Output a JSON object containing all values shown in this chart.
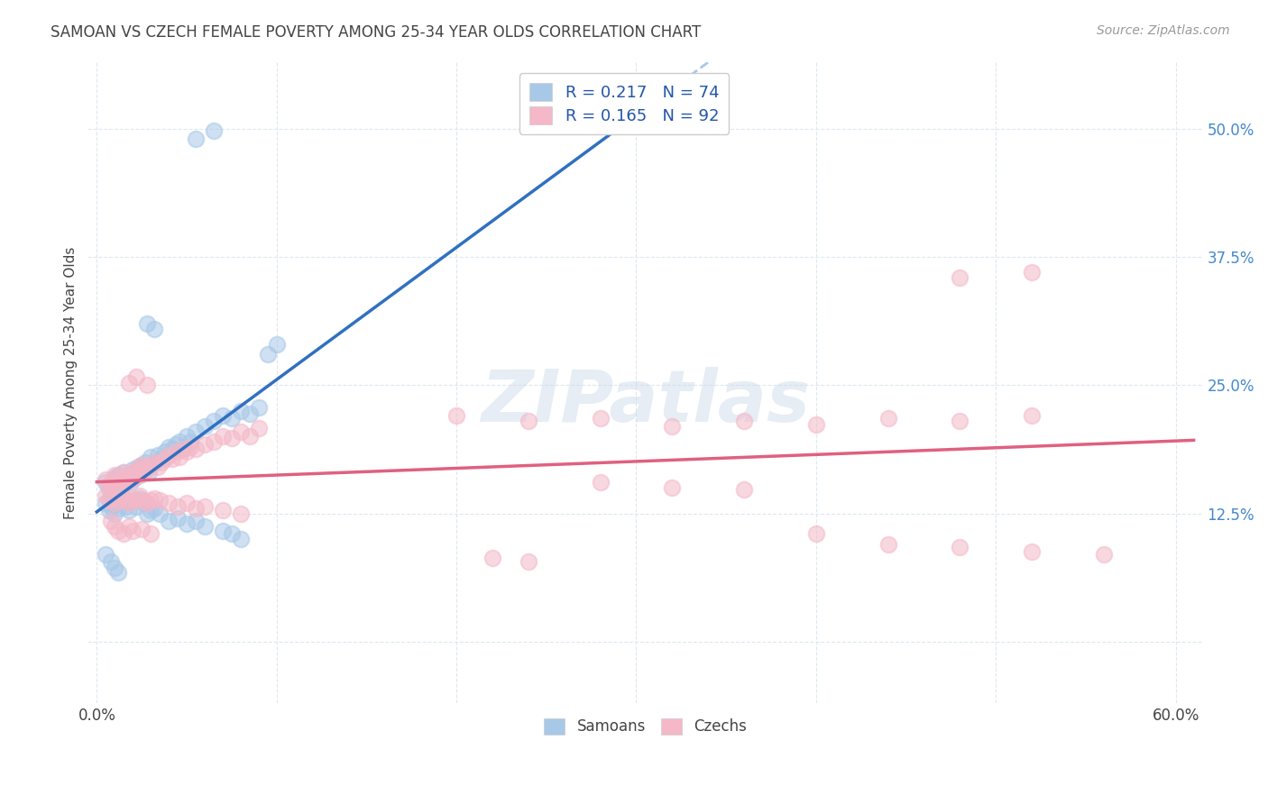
{
  "title": "SAMOAN VS CZECH FEMALE POVERTY AMONG 25-34 YEAR OLDS CORRELATION CHART",
  "source": "Source: ZipAtlas.com",
  "ylabel": "Female Poverty Among 25-34 Year Olds",
  "xlabel_ticks": [
    0.0,
    0.1,
    0.2,
    0.3,
    0.4,
    0.5,
    0.6
  ],
  "xlabel_labels": [
    "0.0%",
    "",
    "",
    "",
    "",
    "",
    "60.0%"
  ],
  "ytick_positions": [
    0.0,
    0.125,
    0.25,
    0.375,
    0.5
  ],
  "ytick_labels": [
    "",
    "12.5%",
    "25.0%",
    "37.5%",
    "50.0%"
  ],
  "xlim": [
    -0.005,
    0.615
  ],
  "ylim": [
    -0.06,
    0.565
  ],
  "watermark": "ZIPatlas",
  "samoan_color": "#a8c8e8",
  "czech_color": "#f4b8c8",
  "samoan_line_color": "#3070c0",
  "czech_line_color": "#e06080",
  "samoan_dash_color": "#a8c8e8",
  "bg_color": "#ffffff",
  "grid_color": "#dde8f0",
  "title_color": "#444444",
  "axis_label_color": "#444444",
  "ytick_color": "#4488cc",
  "legend_text_color": "#2255aa",
  "legend_N_color": "#cc3355",
  "samoan_scatter": [
    [
      0.005,
      0.155
    ],
    [
      0.007,
      0.148
    ],
    [
      0.008,
      0.152
    ],
    [
      0.009,
      0.145
    ],
    [
      0.01,
      0.16
    ],
    [
      0.011,
      0.158
    ],
    [
      0.012,
      0.162
    ],
    [
      0.013,
      0.155
    ],
    [
      0.014,
      0.15
    ],
    [
      0.015,
      0.165
    ],
    [
      0.016,
      0.158
    ],
    [
      0.017,
      0.16
    ],
    [
      0.018,
      0.162
    ],
    [
      0.019,
      0.155
    ],
    [
      0.02,
      0.168
    ],
    [
      0.021,
      0.16
    ],
    [
      0.022,
      0.165
    ],
    [
      0.023,
      0.17
    ],
    [
      0.024,
      0.162
    ],
    [
      0.025,
      0.172
    ],
    [
      0.026,
      0.168
    ],
    [
      0.027,
      0.175
    ],
    [
      0.028,
      0.17
    ],
    [
      0.029,
      0.165
    ],
    [
      0.03,
      0.18
    ],
    [
      0.032,
      0.175
    ],
    [
      0.034,
      0.182
    ],
    [
      0.036,
      0.178
    ],
    [
      0.038,
      0.185
    ],
    [
      0.04,
      0.19
    ],
    [
      0.042,
      0.188
    ],
    [
      0.044,
      0.192
    ],
    [
      0.046,
      0.195
    ],
    [
      0.048,
      0.188
    ],
    [
      0.05,
      0.2
    ],
    [
      0.052,
      0.195
    ],
    [
      0.055,
      0.205
    ],
    [
      0.06,
      0.21
    ],
    [
      0.065,
      0.215
    ],
    [
      0.07,
      0.22
    ],
    [
      0.075,
      0.218
    ],
    [
      0.08,
      0.225
    ],
    [
      0.085,
      0.222
    ],
    [
      0.09,
      0.228
    ],
    [
      0.005,
      0.135
    ],
    [
      0.007,
      0.128
    ],
    [
      0.008,
      0.132
    ],
    [
      0.01,
      0.125
    ],
    [
      0.012,
      0.13
    ],
    [
      0.014,
      0.138
    ],
    [
      0.016,
      0.132
    ],
    [
      0.018,
      0.128
    ],
    [
      0.02,
      0.138
    ],
    [
      0.022,
      0.132
    ],
    [
      0.024,
      0.14
    ],
    [
      0.026,
      0.135
    ],
    [
      0.028,
      0.125
    ],
    [
      0.03,
      0.128
    ],
    [
      0.032,
      0.13
    ],
    [
      0.035,
      0.125
    ],
    [
      0.04,
      0.118
    ],
    [
      0.045,
      0.12
    ],
    [
      0.05,
      0.115
    ],
    [
      0.055,
      0.118
    ],
    [
      0.06,
      0.112
    ],
    [
      0.07,
      0.108
    ],
    [
      0.075,
      0.105
    ],
    [
      0.08,
      0.1
    ],
    [
      0.055,
      0.49
    ],
    [
      0.065,
      0.498
    ],
    [
      0.095,
      0.28
    ],
    [
      0.1,
      0.29
    ],
    [
      0.028,
      0.31
    ],
    [
      0.032,
      0.305
    ],
    [
      0.005,
      0.085
    ],
    [
      0.008,
      0.078
    ],
    [
      0.01,
      0.072
    ],
    [
      0.012,
      0.068
    ]
  ],
  "czech_scatter": [
    [
      0.005,
      0.158
    ],
    [
      0.007,
      0.152
    ],
    [
      0.008,
      0.155
    ],
    [
      0.009,
      0.15
    ],
    [
      0.01,
      0.162
    ],
    [
      0.011,
      0.155
    ],
    [
      0.012,
      0.16
    ],
    [
      0.013,
      0.152
    ],
    [
      0.014,
      0.158
    ],
    [
      0.015,
      0.165
    ],
    [
      0.016,
      0.16
    ],
    [
      0.017,
      0.155
    ],
    [
      0.018,
      0.162
    ],
    [
      0.019,
      0.158
    ],
    [
      0.02,
      0.165
    ],
    [
      0.021,
      0.16
    ],
    [
      0.022,
      0.168
    ],
    [
      0.023,
      0.162
    ],
    [
      0.024,
      0.168
    ],
    [
      0.025,
      0.172
    ],
    [
      0.026,
      0.165
    ],
    [
      0.027,
      0.17
    ],
    [
      0.028,
      0.168
    ],
    [
      0.03,
      0.172
    ],
    [
      0.032,
      0.175
    ],
    [
      0.034,
      0.17
    ],
    [
      0.036,
      0.175
    ],
    [
      0.038,
      0.178
    ],
    [
      0.04,
      0.182
    ],
    [
      0.042,
      0.178
    ],
    [
      0.044,
      0.185
    ],
    [
      0.046,
      0.18
    ],
    [
      0.048,
      0.188
    ],
    [
      0.05,
      0.185
    ],
    [
      0.052,
      0.19
    ],
    [
      0.055,
      0.188
    ],
    [
      0.06,
      0.192
    ],
    [
      0.065,
      0.195
    ],
    [
      0.07,
      0.2
    ],
    [
      0.075,
      0.198
    ],
    [
      0.08,
      0.205
    ],
    [
      0.085,
      0.2
    ],
    [
      0.09,
      0.208
    ],
    [
      0.005,
      0.142
    ],
    [
      0.007,
      0.138
    ],
    [
      0.008,
      0.14
    ],
    [
      0.01,
      0.135
    ],
    [
      0.012,
      0.138
    ],
    [
      0.014,
      0.142
    ],
    [
      0.016,
      0.138
    ],
    [
      0.018,
      0.135
    ],
    [
      0.02,
      0.14
    ],
    [
      0.022,
      0.138
    ],
    [
      0.024,
      0.142
    ],
    [
      0.026,
      0.138
    ],
    [
      0.028,
      0.135
    ],
    [
      0.03,
      0.138
    ],
    [
      0.032,
      0.14
    ],
    [
      0.035,
      0.138
    ],
    [
      0.04,
      0.135
    ],
    [
      0.045,
      0.132
    ],
    [
      0.05,
      0.135
    ],
    [
      0.055,
      0.13
    ],
    [
      0.06,
      0.132
    ],
    [
      0.07,
      0.128
    ],
    [
      0.08,
      0.125
    ],
    [
      0.008,
      0.118
    ],
    [
      0.01,
      0.112
    ],
    [
      0.012,
      0.108
    ],
    [
      0.015,
      0.105
    ],
    [
      0.018,
      0.112
    ],
    [
      0.02,
      0.108
    ],
    [
      0.025,
      0.11
    ],
    [
      0.03,
      0.105
    ],
    [
      0.018,
      0.252
    ],
    [
      0.022,
      0.258
    ],
    [
      0.028,
      0.25
    ],
    [
      0.2,
      0.22
    ],
    [
      0.24,
      0.215
    ],
    [
      0.28,
      0.218
    ],
    [
      0.32,
      0.21
    ],
    [
      0.36,
      0.215
    ],
    [
      0.4,
      0.212
    ],
    [
      0.44,
      0.218
    ],
    [
      0.48,
      0.215
    ],
    [
      0.52,
      0.22
    ],
    [
      0.28,
      0.155
    ],
    [
      0.32,
      0.15
    ],
    [
      0.36,
      0.148
    ],
    [
      0.4,
      0.105
    ],
    [
      0.44,
      0.095
    ],
    [
      0.48,
      0.092
    ],
    [
      0.52,
      0.088
    ],
    [
      0.56,
      0.085
    ],
    [
      0.48,
      0.355
    ],
    [
      0.52,
      0.36
    ],
    [
      0.22,
      0.082
    ],
    [
      0.24,
      0.078
    ]
  ]
}
